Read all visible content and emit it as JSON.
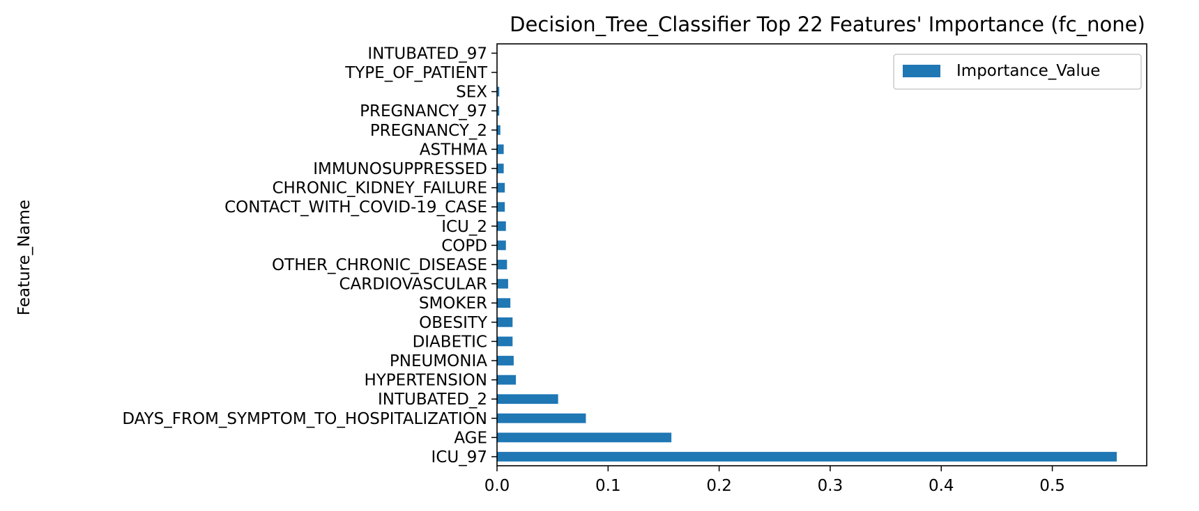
{
  "chart_data": {
    "type": "bar",
    "orientation": "horizontal",
    "title": "Decision_Tree_Classifier Top 22 Features' Importance (fc_none)",
    "xlabel": "",
    "ylabel": "Feature_Name",
    "xlim": [
      0,
      0.585
    ],
    "xticks": [
      "0.0",
      "0.1",
      "0.2",
      "0.3",
      "0.4",
      "0.5"
    ],
    "grid": false,
    "legend_position": "top-right",
    "categories": [
      "ICU_97",
      "AGE",
      "DAYS_FROM_SYMPTOM_TO_HOSPITALIZATION",
      "INTUBATED_2",
      "HYPERTENSION",
      "PNEUMONIA",
      "DIABETIC",
      "OBESITY",
      "SMOKER",
      "CARDIOVASCULAR",
      "OTHER_CHRONIC_DISEASE",
      "COPD",
      "ICU_2",
      "CONTACT_WITH_COVID-19_CASE",
      "CHRONIC_KIDNEY_FAILURE",
      "IMMUNOSUPPRESSED",
      "ASTHMA",
      "PREGNANCY_2",
      "PREGNANCY_97",
      "SEX",
      "TYPE_OF_PATIENT",
      "INTUBATED_97"
    ],
    "series": [
      {
        "name": "Importance_Value",
        "color": "#1f77b4",
        "values": [
          0.558,
          0.157,
          0.08,
          0.055,
          0.017,
          0.015,
          0.014,
          0.014,
          0.012,
          0.01,
          0.009,
          0.008,
          0.008,
          0.007,
          0.007,
          0.006,
          0.006,
          0.003,
          0.002,
          0.002,
          0.0,
          0.0
        ]
      }
    ]
  }
}
